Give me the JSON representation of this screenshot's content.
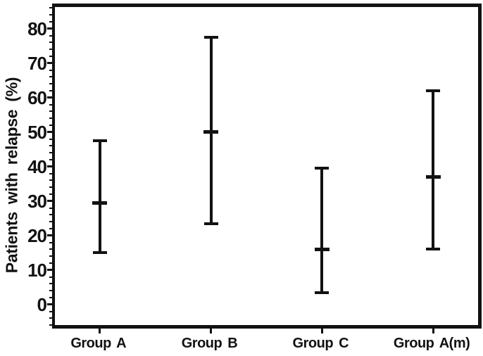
{
  "figure": {
    "title": "",
    "y_axis_title": "Patients with relapse (%)"
  },
  "colors": {
    "ink": "#121212",
    "background": "#ffffff"
  },
  "chart_data": {
    "type": "errorbar",
    "title": "",
    "xlabel": "",
    "ylabel": "Patients with relapse (%)",
    "categories": [
      "Group A",
      "Group B",
      "Group C",
      "Group A(m)"
    ],
    "series": [
      {
        "name": "Patients with relapse (%)",
        "means": [
          29.5,
          50,
          16,
          37
        ],
        "ci_low": [
          15,
          23.5,
          3.5,
          16
        ],
        "ci_high": [
          47.5,
          77.5,
          39.5,
          62
        ]
      }
    ],
    "y_ticks": [
      0,
      10,
      20,
      30,
      40,
      50,
      60,
      70,
      80
    ],
    "ylim": [
      -7,
      87.3
    ],
    "minor_tick_step": 2,
    "grid": false,
    "legend": null,
    "frame": "full-box"
  }
}
